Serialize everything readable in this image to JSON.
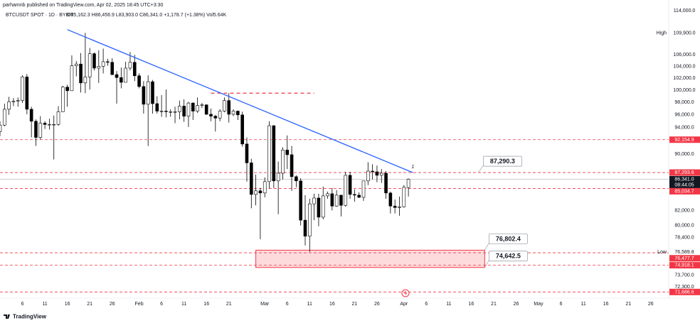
{
  "header": {
    "author_line": "parhamnb published on TradingView.com, Apr 02, 2025 18:45 UTC+3:30"
  },
  "footer": {
    "brand": "TradingView"
  },
  "chart_data": {
    "type": "candlestick",
    "title": "BTCUSDT SPOT · 1D · BYBIT",
    "legend": "O85,162.3 H86,456.9 L83,903.0 C86,341.0 +1,178.7 (+1.38%) Vol5.64K",
    "log_scale": true,
    "grid": false,
    "up_color": "#ffffff",
    "down_color": "#000000",
    "border_color": "#000000",
    "xlim": [
      "2025-01-01",
      "2025-05-30"
    ],
    "ylim": [
      70960,
      116030
    ],
    "xticks": [
      {
        "value": "2025-01-06",
        "label": "6"
      },
      {
        "value": "2025-01-11",
        "label": "11"
      },
      {
        "value": "2025-01-16",
        "label": "16"
      },
      {
        "value": "2025-01-21",
        "label": "21"
      },
      {
        "value": "2025-01-26",
        "label": "26"
      },
      {
        "value": "2025-02-01",
        "label": "Feb"
      },
      {
        "value": "2025-02-06",
        "label": "6"
      },
      {
        "value": "2025-02-11",
        "label": "11"
      },
      {
        "value": "2025-02-16",
        "label": "16"
      },
      {
        "value": "2025-02-21",
        "label": "21"
      },
      {
        "value": "2025-03-01",
        "label": "Mar"
      },
      {
        "value": "2025-03-06",
        "label": "6"
      },
      {
        "value": "2025-03-11",
        "label": "11"
      },
      {
        "value": "2025-03-16",
        "label": "16"
      },
      {
        "value": "2025-03-21",
        "label": "21"
      },
      {
        "value": "2025-03-26",
        "label": "26"
      },
      {
        "value": "2025-04-01",
        "label": "Apr"
      },
      {
        "value": "2025-04-06",
        "label": "6"
      },
      {
        "value": "2025-04-11",
        "label": "11"
      },
      {
        "value": "2025-04-16",
        "label": "16"
      },
      {
        "value": "2025-04-21",
        "label": "21"
      },
      {
        "value": "2025-04-26",
        "label": "26"
      },
      {
        "value": "2025-05-01",
        "label": "May"
      },
      {
        "value": "2025-05-06",
        "label": "6"
      },
      {
        "value": "2025-05-11",
        "label": "11"
      },
      {
        "value": "2025-05-16",
        "label": "16"
      },
      {
        "value": "2025-05-21",
        "label": "21"
      },
      {
        "value": "2025-05-26",
        "label": "26"
      }
    ],
    "yticks": [
      {
        "value": 114000,
        "label": "114,000.0"
      },
      {
        "value": 106000,
        "label": "106,000.0"
      },
      {
        "value": 104000,
        "label": "104,000.0"
      },
      {
        "value": 102000,
        "label": "102,000.0"
      },
      {
        "value": 100000,
        "label": "100,000.0"
      },
      {
        "value": 98000,
        "label": "98,000.0"
      },
      {
        "value": 96000,
        "label": "96,000.0"
      },
      {
        "value": 94000,
        "label": "94,000.0"
      },
      {
        "value": 90000,
        "label": "90,000.0"
      },
      {
        "value": 82000,
        "label": "82,000.0"
      },
      {
        "value": 80000,
        "label": "80,000.0"
      },
      {
        "value": 78400,
        "label": "78,400.0"
      },
      {
        "value": 73700,
        "label": "73,700.0"
      },
      {
        "value": 72300,
        "label": "72,300.0"
      }
    ],
    "x": [
      "2025-01-01",
      "2025-01-02",
      "2025-01-03",
      "2025-01-04",
      "2025-01-05",
      "2025-01-06",
      "2025-01-07",
      "2025-01-08",
      "2025-01-09",
      "2025-01-10",
      "2025-01-11",
      "2025-01-12",
      "2025-01-13",
      "2025-01-14",
      "2025-01-15",
      "2025-01-16",
      "2025-01-17",
      "2025-01-18",
      "2025-01-19",
      "2025-01-20",
      "2025-01-21",
      "2025-01-22",
      "2025-01-23",
      "2025-01-24",
      "2025-01-25",
      "2025-01-26",
      "2025-01-27",
      "2025-01-28",
      "2025-01-29",
      "2025-01-30",
      "2025-01-31",
      "2025-02-01",
      "2025-02-02",
      "2025-02-03",
      "2025-02-04",
      "2025-02-05",
      "2025-02-06",
      "2025-02-07",
      "2025-02-08",
      "2025-02-09",
      "2025-02-10",
      "2025-02-11",
      "2025-02-12",
      "2025-02-13",
      "2025-02-14",
      "2025-02-15",
      "2025-02-16",
      "2025-02-17",
      "2025-02-18",
      "2025-02-19",
      "2025-02-20",
      "2025-02-21",
      "2025-02-22",
      "2025-02-23",
      "2025-02-24",
      "2025-02-25",
      "2025-02-26",
      "2025-02-27",
      "2025-02-28",
      "2025-03-01",
      "2025-03-02",
      "2025-03-03",
      "2025-03-04",
      "2025-03-05",
      "2025-03-06",
      "2025-03-07",
      "2025-03-08",
      "2025-03-09",
      "2025-03-10",
      "2025-03-11",
      "2025-03-12",
      "2025-03-13",
      "2025-03-14",
      "2025-03-15",
      "2025-03-16",
      "2025-03-17",
      "2025-03-18",
      "2025-03-19",
      "2025-03-20",
      "2025-03-21",
      "2025-03-22",
      "2025-03-23",
      "2025-03-24",
      "2025-03-25",
      "2025-03-26",
      "2025-03-27",
      "2025-03-28",
      "2025-03-29",
      "2025-03-30",
      "2025-03-31",
      "2025-04-01",
      "2025-04-02"
    ],
    "ohlc": [
      [
        93400,
        95000,
        92700,
        94400
      ],
      [
        94400,
        97800,
        94200,
        96900
      ],
      [
        96900,
        98900,
        96000,
        98100
      ],
      [
        98100,
        98700,
        97400,
        98200
      ],
      [
        98200,
        98800,
        97300,
        98300
      ],
      [
        98300,
        102500,
        97900,
        102200
      ],
      [
        102200,
        102700,
        96100,
        96900
      ],
      [
        96900,
        97300,
        92500,
        95000
      ],
      [
        95000,
        95300,
        91200,
        92500
      ],
      [
        92500,
        95800,
        92200,
        94700
      ],
      [
        94700,
        95000,
        93800,
        94500
      ],
      [
        94500,
        95400,
        93700,
        94500
      ],
      [
        94500,
        95900,
        89200,
        94500
      ],
      [
        94500,
        97400,
        94300,
        96500
      ],
      [
        96500,
        100700,
        96500,
        100500
      ],
      [
        100500,
        100900,
        97300,
        99900
      ],
      [
        99900,
        105900,
        99900,
        104100
      ],
      [
        104100,
        104900,
        102300,
        104400
      ],
      [
        104400,
        106300,
        99600,
        101200
      ],
      [
        101200,
        109900,
        99500,
        102200
      ],
      [
        102200,
        107200,
        100100,
        106200
      ],
      [
        106200,
        106400,
        103300,
        103700
      ],
      [
        103700,
        106800,
        101200,
        104000
      ],
      [
        104000,
        107100,
        102800,
        104800
      ],
      [
        104800,
        105300,
        104100,
        104700
      ],
      [
        104700,
        105400,
        102500,
        102600
      ],
      [
        102600,
        103200,
        97800,
        102100
      ],
      [
        102100,
        103800,
        100300,
        101300
      ],
      [
        101300,
        104800,
        101300,
        103700
      ],
      [
        103700,
        106500,
        103300,
        104700
      ],
      [
        104700,
        106000,
        101500,
        102400
      ],
      [
        102400,
        102800,
        100300,
        100600
      ],
      [
        100600,
        101500,
        96200,
        97700
      ],
      [
        97700,
        102500,
        91200,
        101400
      ],
      [
        101400,
        101700,
        96200,
        97800
      ],
      [
        97800,
        99000,
        96200,
        96600
      ],
      [
        96600,
        99200,
        95700,
        96600
      ],
      [
        96600,
        100100,
        95600,
        96500
      ],
      [
        96500,
        96900,
        95700,
        96500
      ],
      [
        96500,
        97300,
        94700,
        96500
      ],
      [
        96500,
        98300,
        95300,
        97400
      ],
      [
        97400,
        98500,
        94900,
        95800
      ],
      [
        95800,
        98100,
        94100,
        97900
      ],
      [
        97900,
        98000,
        95200,
        96600
      ],
      [
        96600,
        98800,
        96300,
        97500
      ],
      [
        97500,
        97900,
        97100,
        97600
      ],
      [
        97600,
        97700,
        96000,
        96100
      ],
      [
        96100,
        97000,
        95000,
        95800
      ],
      [
        95800,
        96000,
        93400,
        95500
      ],
      [
        95500,
        96900,
        95000,
        96600
      ],
      [
        96600,
        98800,
        96400,
        98300
      ],
      [
        98300,
        99500,
        94800,
        96100
      ],
      [
        96100,
        96900,
        95800,
        96600
      ],
      [
        96600,
        96700,
        95200,
        96000
      ],
      [
        96000,
        96500,
        91100,
        91500
      ],
      [
        91500,
        92500,
        86000,
        88700
      ],
      [
        88700,
        89300,
        82300,
        84200
      ],
      [
        84200,
        87000,
        82700,
        84700
      ],
      [
        84700,
        85100,
        78200,
        84400
      ],
      [
        84400,
        86600,
        83800,
        86000
      ],
      [
        86000,
        95000,
        85000,
        94300
      ],
      [
        94300,
        94400,
        85100,
        86100
      ],
      [
        86100,
        88900,
        81500,
        87200
      ],
      [
        87200,
        91000,
        86300,
        90600
      ],
      [
        90600,
        92800,
        87800,
        89900
      ],
      [
        89900,
        91200,
        84700,
        86700
      ],
      [
        86700,
        86900,
        85200,
        86100
      ],
      [
        86100,
        86500,
        80000,
        80700
      ],
      [
        80700,
        84100,
        77400,
        78600
      ],
      [
        78600,
        83600,
        76589.8,
        82900
      ],
      [
        82900,
        84300,
        80700,
        83700
      ],
      [
        83700,
        84300,
        79900,
        81100
      ],
      [
        81100,
        85300,
        80800,
        84000
      ],
      [
        84000,
        84600,
        83600,
        84300
      ],
      [
        84300,
        85100,
        82000,
        82600
      ],
      [
        82600,
        84800,
        82500,
        84100
      ],
      [
        84100,
        84100,
        81200,
        82700
      ],
      [
        82700,
        87400,
        82500,
        86900
      ],
      [
        86900,
        87400,
        83600,
        84200
      ],
      [
        84200,
        84900,
        83200,
        84100
      ],
      [
        84100,
        84500,
        83700,
        83800
      ],
      [
        83800,
        86100,
        83300,
        86100
      ],
      [
        86100,
        88800,
        85500,
        87500
      ],
      [
        87500,
        88500,
        86300,
        87400
      ],
      [
        87400,
        88300,
        85900,
        86900
      ],
      [
        86900,
        87800,
        85800,
        87200
      ],
      [
        87200,
        87500,
        83600,
        84400
      ],
      [
        84400,
        84600,
        81600,
        82600
      ],
      [
        82600,
        83500,
        81600,
        82400
      ],
      [
        82400,
        83900,
        81300,
        82500
      ],
      [
        82500,
        85500,
        82400,
        85200
      ],
      [
        85162.3,
        86456.9,
        83903.0,
        86341.0
      ]
    ],
    "level_color": "#f23645",
    "levels": [
      {
        "value": 92154.9,
        "label": "92,154.9"
      },
      {
        "value": 87293.6,
        "label": "87,293.6"
      },
      {
        "value": 85034.7,
        "label": "85,034.7"
      },
      {
        "value": 76477.7,
        "label": "76,477.7"
      },
      {
        "value": 74918.1,
        "label": "74,918.1"
      },
      {
        "value": 71686.6,
        "label": "71,686.6"
      }
    ],
    "current": {
      "value": 86341.0,
      "label": "86,341.0",
      "countdown": "08:44:05"
    },
    "high": {
      "text": "High",
      "value": 109900,
      "label": "109,900.0"
    },
    "low": {
      "text": "Low",
      "value": 76589.8,
      "label": "76,589.8"
    },
    "trendline": {
      "color": "#2962ff",
      "x": [
        "2025-01-16",
        "2025-04-03"
      ],
      "y": [
        110500,
        87290.3
      ],
      "label": "87,290.3",
      "tag": "1"
    },
    "resistance": {
      "value": 99500,
      "x": [
        "2025-02-17",
        "2025-03-12"
      ]
    },
    "zone": {
      "x": [
        "2025-02-27",
        "2025-04-19"
      ],
      "top": 76802.4,
      "bottom": 74642.5,
      "top_label": "76,802.4",
      "bottom_label": "74,642.5"
    }
  }
}
